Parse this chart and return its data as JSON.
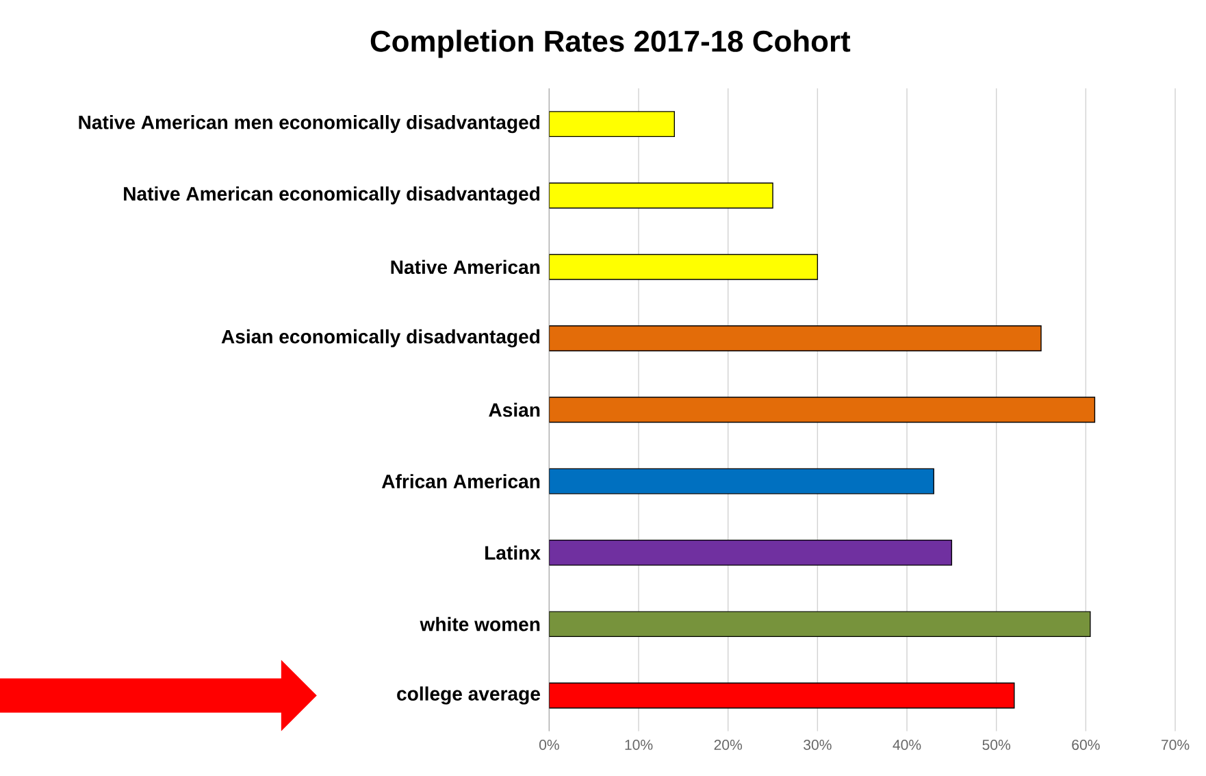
{
  "chart_data": {
    "type": "bar",
    "orientation": "horizontal",
    "title": "Completion Rates 2017-18 Cohort",
    "categories": [
      "Native American men economically disadvantaged",
      "Native American economically disadvantaged",
      "Native American",
      "Asian economically disadvantaged",
      "Asian",
      "African American",
      "Latinx",
      "white women",
      "college average"
    ],
    "values": [
      14,
      25,
      30,
      55,
      61,
      43,
      45,
      60.5,
      52
    ],
    "colors": [
      "#ffff00",
      "#ffff00",
      "#ffff00",
      "#e36c09",
      "#e36c09",
      "#0070c0",
      "#7030a0",
      "#77933c",
      "#ff0000"
    ],
    "xlim": [
      0,
      70
    ],
    "xticks": [
      {
        "value": 0,
        "label": "0%"
      },
      {
        "value": 10,
        "label": "10%"
      },
      {
        "value": 20,
        "label": "20%"
      },
      {
        "value": 30,
        "label": "30%"
      },
      {
        "value": 40,
        "label": "40%"
      },
      {
        "value": 50,
        "label": "50%"
      },
      {
        "value": 60,
        "label": "60%"
      },
      {
        "value": 70,
        "label": "70%"
      }
    ],
    "grid": "x"
  }
}
